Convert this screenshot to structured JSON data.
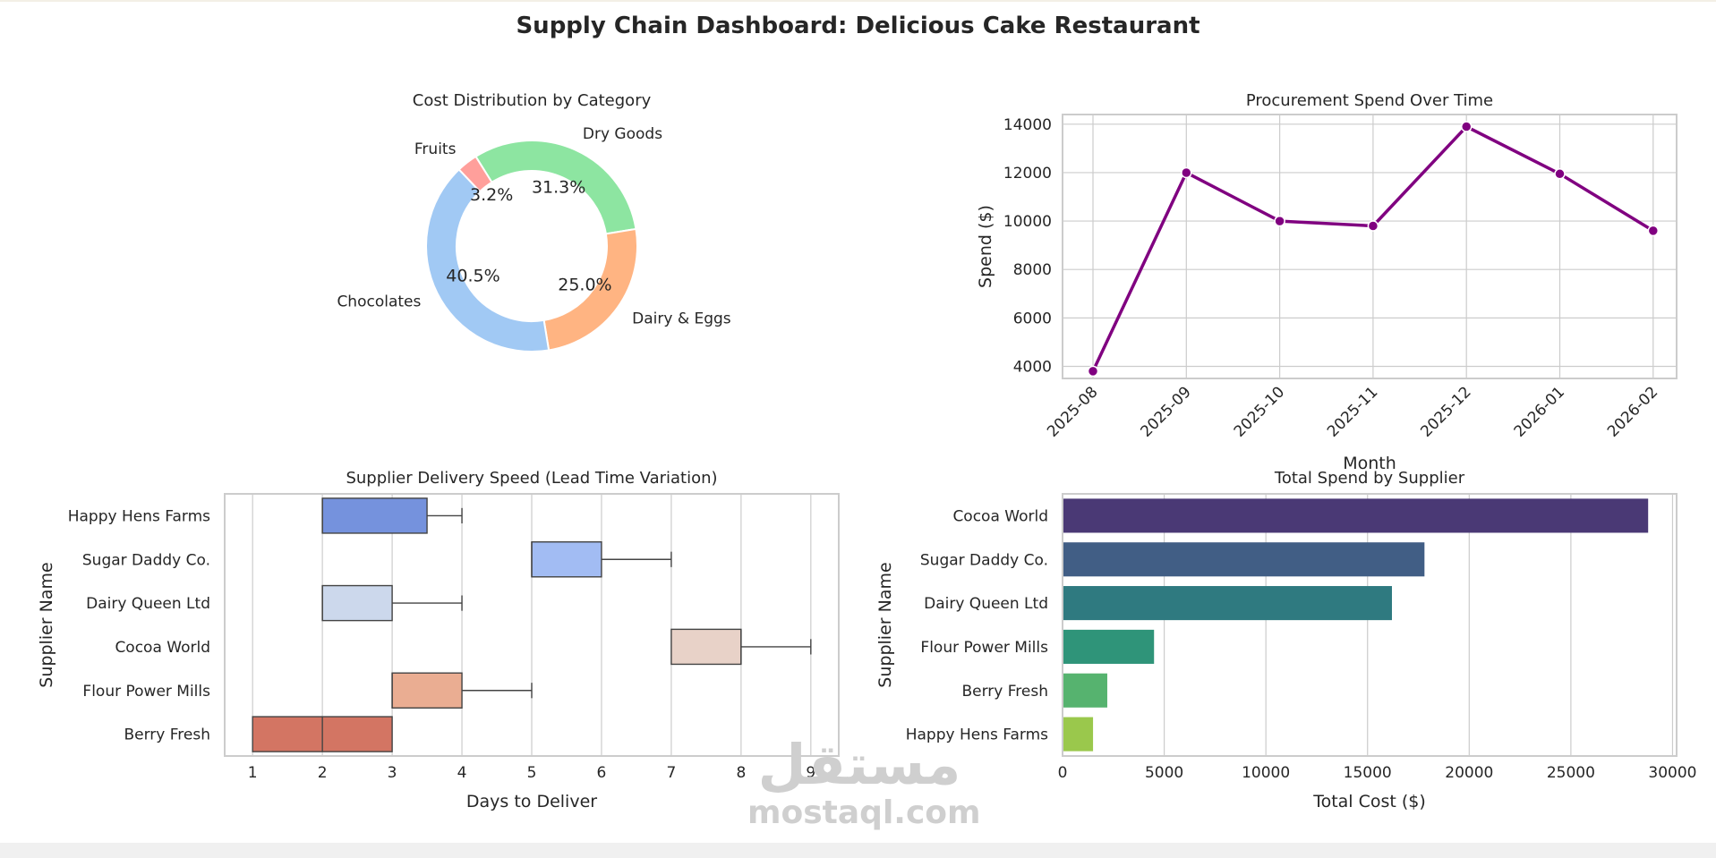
{
  "page": {
    "title": "Supply Chain Dashboard: Delicious Cake Restaurant",
    "watermark": {
      "arabic": "مستقل",
      "latin": "mostaql.com"
    }
  },
  "chart_data": [
    {
      "type": "pie",
      "variant": "donut",
      "title": "Cost Distribution by Category",
      "slices": [
        {
          "label": "Dry Goods",
          "value": 31.3,
          "pct_label": "31.3%",
          "color": "#8de5a1"
        },
        {
          "label": "Dairy & Eggs",
          "value": 25.0,
          "pct_label": "25.0%",
          "color": "#ffb482"
        },
        {
          "label": "Chocolates",
          "value": 40.5,
          "pct_label": "40.5%",
          "color": "#a1c9f4"
        },
        {
          "label": "Fruits",
          "value": 3.2,
          "pct_label": "3.2%",
          "color": "#ff9f9b"
        }
      ]
    },
    {
      "type": "line",
      "title": "Procurement Spend Over Time",
      "xlabel": "Month",
      "ylabel": "Spend ($)",
      "x": [
        "2025-08",
        "2025-09",
        "2025-10",
        "2025-11",
        "2025-12",
        "2026-01",
        "2026-02"
      ],
      "y": [
        3800,
        12000,
        10000,
        9800,
        13900,
        11950,
        9600
      ],
      "ylim": [
        3500,
        14400
      ],
      "yticks": [
        4000,
        6000,
        8000,
        10000,
        12000,
        14000
      ],
      "grid": true,
      "color": "#800080"
    },
    {
      "type": "box",
      "orientation": "horizontal",
      "title": "Supplier Delivery Speed (Lead Time Variation)",
      "xlabel": "Days to Deliver",
      "ylabel": "Supplier Name",
      "xlim": [
        0.6,
        9.4
      ],
      "xticks": [
        1,
        2,
        3,
        4,
        5,
        6,
        7,
        8,
        9
      ],
      "grid": true,
      "boxes": [
        {
          "category": "Happy Hens Farms",
          "min": 2,
          "q1": 2,
          "median": 2,
          "q3": 3.5,
          "max": 4,
          "color": "#7592dd"
        },
        {
          "category": "Sugar Daddy Co.",
          "min": 5,
          "q1": 5,
          "median": 5,
          "q3": 6,
          "max": 7,
          "color": "#a2bcf3"
        },
        {
          "category": "Dairy Queen Ltd",
          "min": 2,
          "q1": 2,
          "median": 2,
          "q3": 3,
          "max": 4,
          "color": "#ccd8ec"
        },
        {
          "category": "Cocoa World",
          "min": 7,
          "q1": 7,
          "median": 8,
          "q3": 8,
          "max": 9,
          "color": "#e8d2c8"
        },
        {
          "category": "Flour Power Mills",
          "min": 3,
          "q1": 3,
          "median": 3,
          "q3": 4,
          "max": 5,
          "color": "#eaad92"
        },
        {
          "category": "Berry Fresh",
          "min": 1,
          "q1": 1,
          "median": 2,
          "q3": 3,
          "max": 3,
          "color": "#d37563"
        }
      ]
    },
    {
      "type": "bar",
      "orientation": "horizontal",
      "title": "Total Spend by Supplier",
      "xlabel": "Total Cost ($)",
      "ylabel": "Supplier Name",
      "categories": [
        "Cocoa World",
        "Sugar Daddy Co.",
        "Dairy Queen Ltd",
        "Flour Power Mills",
        "Berry Fresh",
        "Happy Hens Farms"
      ],
      "values": [
        28800,
        17800,
        16200,
        4500,
        2200,
        1500
      ],
      "colors": [
        "#4a3975",
        "#415e85",
        "#2f7a80",
        "#2f9479",
        "#56b36f",
        "#9ac84c"
      ],
      "xlim": [
        0,
        30200
      ],
      "xticks": [
        0,
        5000,
        10000,
        15000,
        20000,
        25000,
        30000
      ],
      "grid": true
    }
  ]
}
